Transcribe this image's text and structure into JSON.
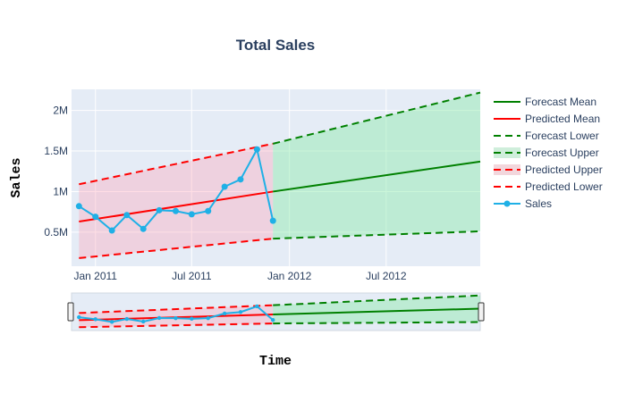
{
  "chart_data": {
    "type": "line",
    "title": "Total Sales",
    "xlabel": "Time",
    "ylabel": "Sales",
    "x_range": [
      "2010-11-17",
      "2012-12-25"
    ],
    "y_range": [
      80000,
      2260000
    ],
    "grid": true,
    "legend_placement": "right",
    "range_slider": true,
    "x_ticks": [
      {
        "date": "2011-01-01",
        "label": "Jan 2011"
      },
      {
        "date": "2011-07-01",
        "label": "Jul 2011"
      },
      {
        "date": "2012-01-01",
        "label": "Jan 2012"
      },
      {
        "date": "2012-07-01",
        "label": "Jul 2012"
      }
    ],
    "y_ticks": [
      {
        "value": 500000,
        "label": "0.5M"
      },
      {
        "value": 1000000,
        "label": "1M"
      },
      {
        "value": 1500000,
        "label": "1.5M"
      },
      {
        "value": 2000000,
        "label": "2M"
      }
    ],
    "sales": {
      "name": "Sales",
      "color": "#1fb0e6",
      "x": [
        "2010-12-01",
        "2011-01-01",
        "2011-02-01",
        "2011-03-01",
        "2011-04-01",
        "2011-05-01",
        "2011-06-01",
        "2011-07-01",
        "2011-08-01",
        "2011-09-01",
        "2011-10-01",
        "2011-11-01",
        "2011-12-01"
      ],
      "y": [
        820000,
        690000,
        520000,
        710000,
        540000,
        770000,
        760000,
        720000,
        760000,
        1060000,
        1150000,
        1520000,
        640000
      ]
    },
    "predicted_mean": {
      "name": "Predicted Mean",
      "color": "#ff0000",
      "x": [
        "2010-12-01",
        "2011-12-01"
      ],
      "y": [
        630000,
        1000000
      ]
    },
    "predicted_upper": {
      "name": "Predicted Upper",
      "color": "#ff0000",
      "x": [
        "2010-12-01",
        "2011-12-01"
      ],
      "y": [
        1090000,
        1590000
      ]
    },
    "predicted_lower": {
      "name": "Predicted Lower",
      "color": "#ff0000",
      "x": [
        "2010-12-01",
        "2011-12-01"
      ],
      "y": [
        180000,
        420000
      ]
    },
    "forecast_mean": {
      "name": "Forecast Mean",
      "color": "#008000",
      "x": [
        "2011-12-01",
        "2012-12-25"
      ],
      "y": [
        1000000,
        1370000
      ]
    },
    "forecast_upper": {
      "name": "Forecast Upper",
      "color": "#008000",
      "x": [
        "2011-12-01",
        "2012-12-25"
      ],
      "y": [
        1590000,
        2220000
      ]
    },
    "forecast_lower": {
      "name": "Forecast Lower",
      "color": "#008000",
      "x": [
        "2011-12-01",
        "2012-12-25"
      ],
      "y": [
        420000,
        510000
      ]
    },
    "legend": [
      {
        "name": "Forecast Mean",
        "color": "#008000",
        "style": "solid"
      },
      {
        "name": "Predicted Mean",
        "color": "#ff0000",
        "style": "solid"
      },
      {
        "name": "Forecast Lower",
        "color": "#008000",
        "style": "dash"
      },
      {
        "name": "Forecast Upper",
        "color": "#008000",
        "style": "dash-fill",
        "fill": "#cfeedb"
      },
      {
        "name": "Predicted Upper",
        "color": "#ff0000",
        "style": "dash-fill",
        "fill": "#f2d6dc"
      },
      {
        "name": "Predicted Lower",
        "color": "#ff0000",
        "style": "dash"
      },
      {
        "name": "Sales",
        "color": "#1fb0e6",
        "style": "marker"
      }
    ],
    "colors": {
      "plot_bg": "#e5ecf6",
      "predicted_fill": "rgba(255,160,180,0.35)",
      "forecast_fill": "rgba(140,235,170,0.45)"
    }
  }
}
